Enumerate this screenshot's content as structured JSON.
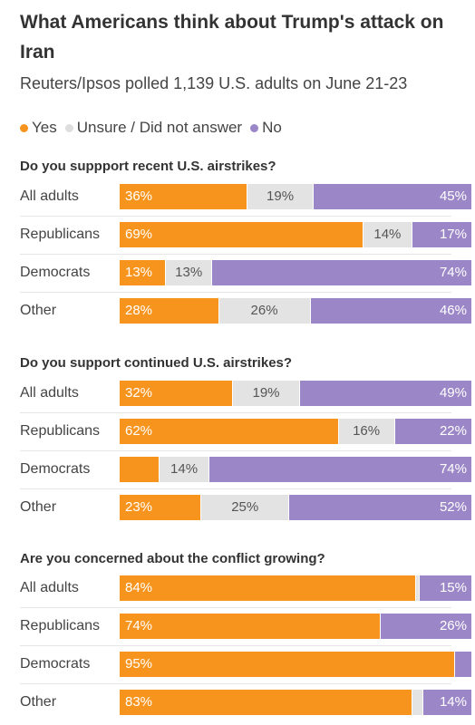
{
  "title": "What Americans think about Trump's attack on Iran",
  "subtitle": "Reuters/Ipsos polled 1,139 U.S. adults on June 21-23",
  "colors": {
    "yes": "#f7941d",
    "unsure": "#e3e3e3",
    "no": "#9b87c7"
  },
  "chart_data": {
    "type": "bar",
    "orientation": "horizontal-stacked-100",
    "legend": [
      "Yes",
      "Unsure / Did not answer",
      "No"
    ],
    "legend_placement": "top",
    "groups": [
      {
        "question": "Do you suppport recent U.S. airstrikes?",
        "categories": [
          "All adults",
          "Republicans",
          "Democrats",
          "Other"
        ],
        "series": [
          {
            "name": "Yes",
            "values": [
              36,
              69,
              13,
              28
            ],
            "labels": [
              "36%",
              "69%",
              "13%",
              "28%"
            ]
          },
          {
            "name": "Unsure / Did not answer",
            "values": [
              19,
              14,
              13,
              26
            ],
            "labels": [
              "19%",
              "14%",
              "13%",
              "26%"
            ]
          },
          {
            "name": "No",
            "values": [
              45,
              17,
              74,
              46
            ],
            "labels": [
              "45%",
              "17%",
              "74%",
              "46%"
            ]
          }
        ]
      },
      {
        "question": "Do you support continued U.S. airstrikes?",
        "categories": [
          "All adults",
          "Republicans",
          "Democrats",
          "Other"
        ],
        "series": [
          {
            "name": "Yes",
            "values": [
              32,
              62,
              11,
              23
            ],
            "labels": [
              "32%",
              "62%",
              "",
              "23%"
            ]
          },
          {
            "name": "Unsure / Did not answer",
            "values": [
              19,
              16,
              14,
              25
            ],
            "labels": [
              "19%",
              "16%",
              "14%",
              "25%"
            ]
          },
          {
            "name": "No",
            "values": [
              49,
              22,
              74,
              52
            ],
            "labels": [
              "49%",
              "22%",
              "74%",
              "52%"
            ]
          }
        ]
      },
      {
        "question": "Are you concerned about the conflict growing?",
        "categories": [
          "All adults",
          "Republicans",
          "Democrats",
          "Other"
        ],
        "series": [
          {
            "name": "Yes",
            "values": [
              84,
              74,
              95,
              83
            ],
            "labels": [
              "84%",
              "74%",
              "95%",
              "83%"
            ]
          },
          {
            "name": "Unsure / Did not answer",
            "values": [
              1,
              0,
              0,
              3
            ],
            "labels": [
              "",
              "",
              "",
              ""
            ]
          },
          {
            "name": "No",
            "values": [
              15,
              26,
              5,
              14
            ],
            "labels": [
              "15%",
              "26%",
              "",
              "14%"
            ]
          }
        ]
      }
    ]
  }
}
